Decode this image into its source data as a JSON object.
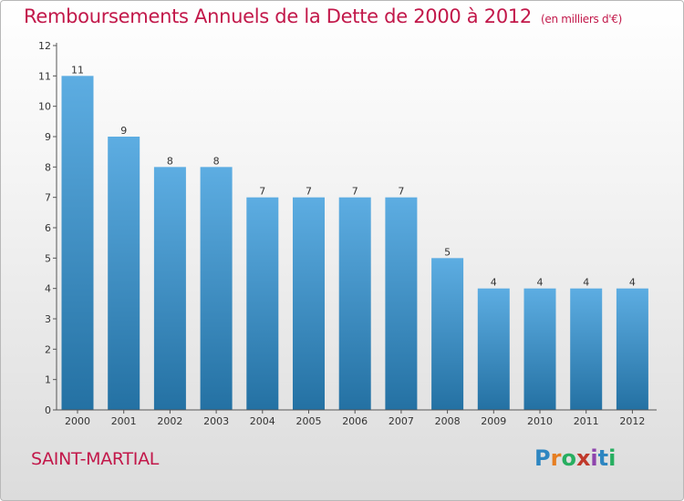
{
  "title": "Remboursements Annuels de la Dette de 2000 à 2012",
  "unit_label": "(en milliers d'€)",
  "commune": "SAINT-MARTIAL",
  "logo": {
    "text": "Proxiti",
    "colors": [
      "#2e86c1",
      "#e67e22",
      "#27ae60",
      "#c0392b",
      "#8e44ad",
      "#2e86c1",
      "#27ae60"
    ]
  },
  "colors": {
    "bar_light": "#5dade2",
    "bar_dark": "#2471a3",
    "title": "#c2184a"
  },
  "chart_data": {
    "type": "bar",
    "title": "Remboursements Annuels de la Dette de 2000 à 2012",
    "categories": [
      "2000",
      "2001",
      "2002",
      "2003",
      "2004",
      "2005",
      "2006",
      "2007",
      "2008",
      "2009",
      "2010",
      "2011",
      "2012"
    ],
    "values": [
      11,
      9,
      8,
      8,
      7,
      7,
      7,
      7,
      5,
      4,
      4,
      4,
      4
    ],
    "yticks": [
      0,
      1,
      2,
      3,
      4,
      5,
      6,
      7,
      8,
      9,
      10,
      11,
      12
    ],
    "ylim": [
      0,
      12
    ],
    "grid": false
  }
}
